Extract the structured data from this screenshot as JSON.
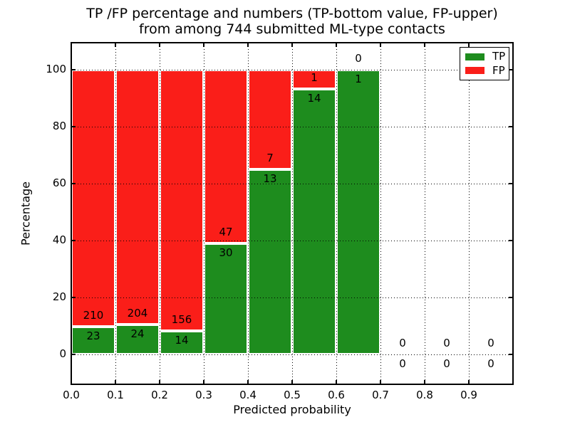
{
  "chart_data": {
    "type": "bar",
    "stacked": true,
    "percent_normalized": true,
    "title_line1": "TP /FP percentage and numbers (TP-bottom value, FP-upper)",
    "title_line2": "from among 744 submitted ML-type contacts",
    "total_contacts": 744,
    "xlabel": "Predicted probability",
    "ylabel": "Percentage",
    "x_tick_labels": [
      "0.0",
      "0.1",
      "0.2",
      "0.3",
      "0.4",
      "0.5",
      "0.6",
      "0.7",
      "0.8",
      "0.9"
    ],
    "y_tick_labels": [
      "0",
      "20",
      "40",
      "60",
      "80",
      "100"
    ],
    "xlim": [
      0.0,
      1.0
    ],
    "ylim": [
      -10,
      110
    ],
    "grid": {
      "visible": true,
      "style": "dotted",
      "color": "#000000"
    },
    "bins": [
      {
        "range": "0.0-0.1",
        "tp": 23,
        "fp": 210
      },
      {
        "range": "0.1-0.2",
        "tp": 24,
        "fp": 204
      },
      {
        "range": "0.2-0.3",
        "tp": 14,
        "fp": 156
      },
      {
        "range": "0.3-0.4",
        "tp": 30,
        "fp": 47
      },
      {
        "range": "0.4-0.5",
        "tp": 13,
        "fp": 7
      },
      {
        "range": "0.5-0.6",
        "tp": 14,
        "fp": 1
      },
      {
        "range": "0.6-0.7",
        "tp": 1,
        "fp": 0
      },
      {
        "range": "0.7-0.8",
        "tp": 0,
        "fp": 0
      },
      {
        "range": "0.8-0.9",
        "tp": 0,
        "fp": 0
      },
      {
        "range": "0.9-1.0",
        "tp": 0,
        "fp": 0
      }
    ],
    "series": [
      {
        "name": "TP",
        "color": "#1e8c1e",
        "values": [
          23,
          24,
          14,
          30,
          13,
          14,
          1,
          0,
          0,
          0
        ]
      },
      {
        "name": "FP",
        "color": "#fa1e19",
        "values": [
          210,
          204,
          156,
          47,
          7,
          1,
          0,
          0,
          0,
          0
        ]
      }
    ],
    "tp_percent_of_bin": [
      9.9,
      10.5,
      8.2,
      39.0,
      65.0,
      93.3,
      100.0,
      0.0,
      0.0,
      0.0
    ],
    "legend": {
      "position": "upper right",
      "entries": [
        {
          "label": "TP",
          "color": "#1e8c1e"
        },
        {
          "label": "FP",
          "color": "#fa1e19"
        }
      ]
    }
  }
}
